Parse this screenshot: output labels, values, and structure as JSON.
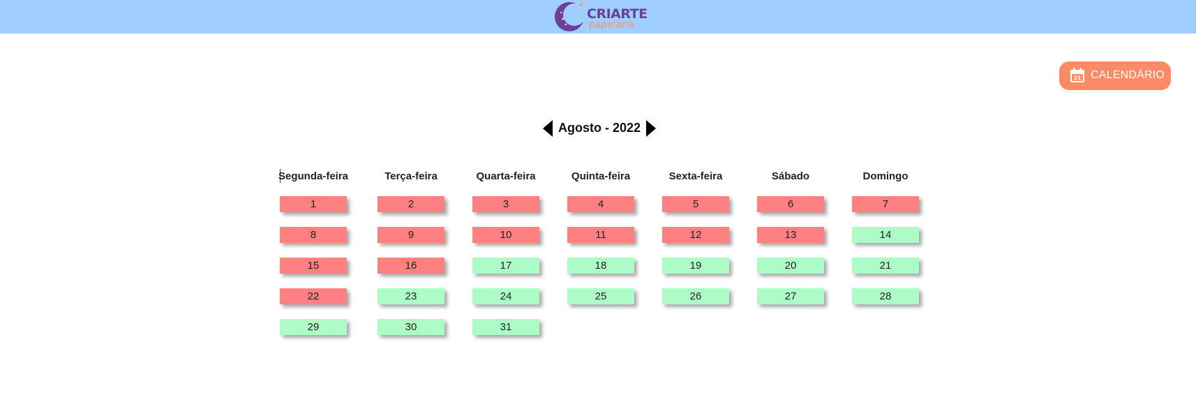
{
  "header": {
    "brand_name": "CRIARTE",
    "brand_sub": "papelaria"
  },
  "calendar_button": {
    "label": "CALENDÁRIO",
    "icon": "calendar-icon",
    "icon_day": "31"
  },
  "month_nav": {
    "title": "Agosto - 2022",
    "prev_icon": "triangle-left-icon",
    "next_icon": "triangle-right-icon"
  },
  "weekdays": [
    "Segunda-feira",
    "Terça-feira",
    "Quarta-feira",
    "Quinta-feira",
    "Sexta-feira",
    "Sábado",
    "Domingo"
  ],
  "days": [
    {
      "day": "1",
      "status": "busy"
    },
    {
      "day": "2",
      "status": "busy"
    },
    {
      "day": "3",
      "status": "busy"
    },
    {
      "day": "4",
      "status": "busy"
    },
    {
      "day": "5",
      "status": "busy"
    },
    {
      "day": "6",
      "status": "busy"
    },
    {
      "day": "7",
      "status": "busy"
    },
    {
      "day": "8",
      "status": "busy"
    },
    {
      "day": "9",
      "status": "busy"
    },
    {
      "day": "10",
      "status": "busy"
    },
    {
      "day": "11",
      "status": "busy"
    },
    {
      "day": "12",
      "status": "busy"
    },
    {
      "day": "13",
      "status": "busy"
    },
    {
      "day": "14",
      "status": "free"
    },
    {
      "day": "15",
      "status": "busy"
    },
    {
      "day": "16",
      "status": "busy"
    },
    {
      "day": "17",
      "status": "free"
    },
    {
      "day": "18",
      "status": "free"
    },
    {
      "day": "19",
      "status": "free"
    },
    {
      "day": "20",
      "status": "free"
    },
    {
      "day": "21",
      "status": "free"
    },
    {
      "day": "22",
      "status": "busy"
    },
    {
      "day": "23",
      "status": "free"
    },
    {
      "day": "24",
      "status": "free"
    },
    {
      "day": "25",
      "status": "free"
    },
    {
      "day": "26",
      "status": "free"
    },
    {
      "day": "27",
      "status": "free"
    },
    {
      "day": "28",
      "status": "free"
    },
    {
      "day": "29",
      "status": "free"
    },
    {
      "day": "30",
      "status": "free"
    },
    {
      "day": "31",
      "status": "free"
    }
  ],
  "colors": {
    "header_bg": "#a0cffd",
    "brand_purple": "#6b3fa0",
    "brand_orange": "#f7906d",
    "button_bg": "#fb8a66",
    "busy_day": "#ff8080",
    "free_day": "#adfbc6"
  }
}
